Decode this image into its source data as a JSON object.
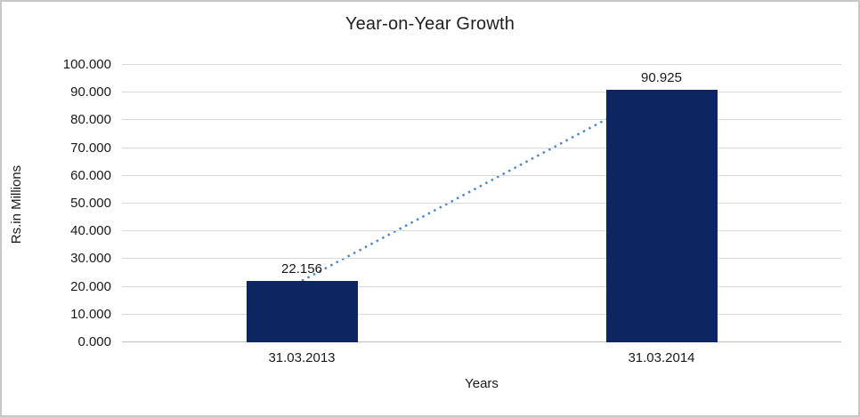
{
  "chart_data": {
    "type": "bar",
    "title": "Year-on-Year Growth",
    "xlabel": "Years",
    "ylabel": "Rs.in Millions",
    "categories": [
      "31.03.2013",
      "31.03.2014"
    ],
    "values": [
      22.156,
      90.925
    ],
    "data_labels": [
      "22.156",
      "90.925"
    ],
    "ylim": [
      0,
      100
    ],
    "ytick_step": 10,
    "ytick_labels": [
      "0.000",
      "10.000",
      "20.000",
      "30.000",
      "40.000",
      "50.000",
      "60.000",
      "70.000",
      "80.000",
      "90.000",
      "100.000"
    ],
    "grid": true,
    "legend": false,
    "trendline": {
      "style": "dotted",
      "from_category": "31.03.2013",
      "to_category": "31.03.2014"
    }
  },
  "colors": {
    "bar": "#0d2661",
    "trendline": "#4f88c7",
    "gridline": "#d9d9d9",
    "axis_line": "#c0c0c0",
    "text": "#1a1a1a",
    "border": "#c8c8c8",
    "background": "#ffffff"
  }
}
